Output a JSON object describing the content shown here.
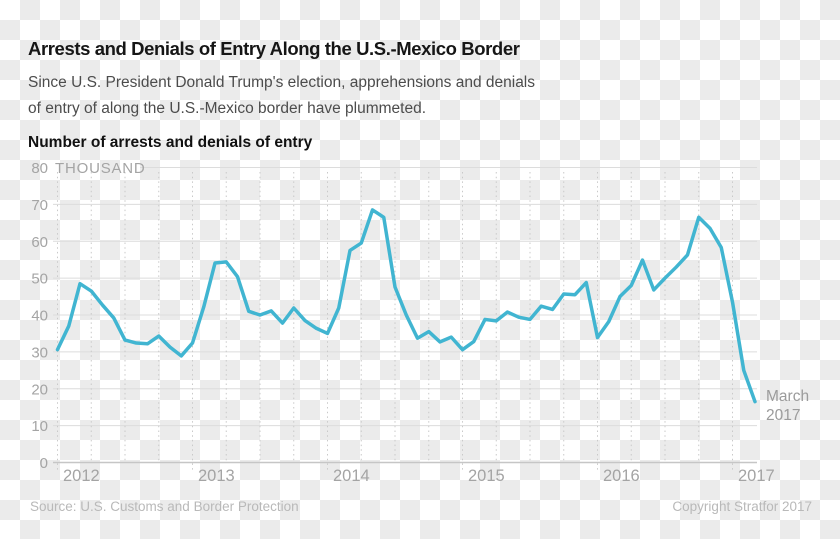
{
  "header": {
    "title": "Arrests and Denials of Entry Along the U.S.-Mexico Border",
    "subtitle_line1": "Since U.S. President Donald Trump's election, apprehensions and denials",
    "subtitle_line2": "of entry of along the U.S.-Mexico border have plummeted.",
    "chart_label": "Number of arrests and denials of entry"
  },
  "chart_data": {
    "type": "line",
    "title": "Number of arrests and denials of entry",
    "y_unit_label": "THOUSAND",
    "ylim": [
      0,
      80
    ],
    "y_ticks": [
      0,
      10,
      20,
      30,
      40,
      50,
      60,
      70,
      80
    ],
    "x_tick_labels": [
      "2012",
      "2013",
      "2014",
      "2015",
      "2016",
      "2017"
    ],
    "x_interval": "monthly",
    "x_range": "Jan 2012 - Mar 2017",
    "grid": "horizontal solid, vertical dotted quarterly",
    "legend": "none",
    "line_color": "#41b5d1",
    "series": [
      {
        "name": "Number of arrests and denials of entry (thousands)",
        "values": [
          30.6,
          37.0,
          48.5,
          46.5,
          42.7,
          39.2,
          33.2,
          32.4,
          32.2,
          34.3,
          31.3,
          28.9,
          32.4,
          42.2,
          54.1,
          54.4,
          50.4,
          41.0,
          40.0,
          41.1,
          37.8,
          41.9,
          38.5,
          36.4,
          35.0,
          41.9,
          57.5,
          59.5,
          68.5,
          66.5,
          47.6,
          40.0,
          33.7,
          35.5,
          32.7,
          34.0,
          30.6,
          32.8,
          38.8,
          38.4,
          40.8,
          39.4,
          38.8,
          42.4,
          41.5,
          45.7,
          45.5,
          48.8,
          33.9,
          38.2,
          45.0,
          48.0,
          54.9,
          46.8,
          50.0,
          53.0,
          56.3,
          66.5,
          63.5,
          58.3,
          43.5,
          25.0,
          16.5
        ]
      }
    ],
    "annotation": {
      "line1": "March",
      "line2": "2017"
    }
  },
  "footer": {
    "source": "Source: U.S. Customs and Border Protection",
    "copyright": "Copyright Stratfor 2017"
  }
}
